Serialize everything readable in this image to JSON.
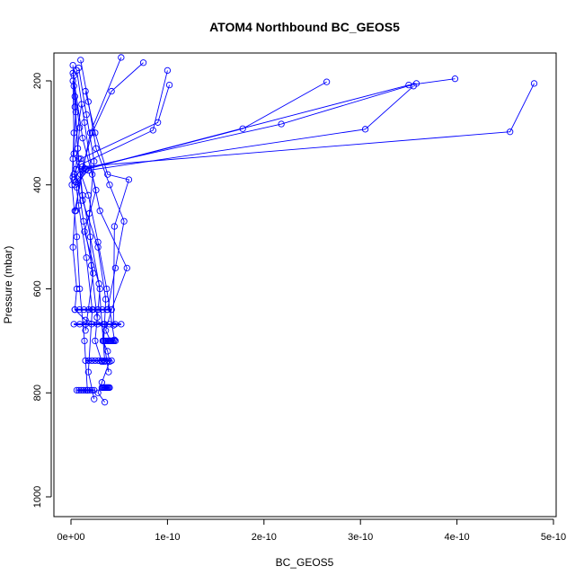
{
  "chart_data": {
    "type": "line",
    "title": "ATOM4 Northbound BC_GEOS5",
    "xlabel": "BC_GEOS5",
    "ylabel": "Pressure (mbar)",
    "xlim": [
      -1.5e-11,
      5e-10
    ],
    "ylim": [
      1030,
      150
    ],
    "y_reversed": true,
    "x_ticks": [
      {
        "value": 0,
        "label": "0e+00"
      },
      {
        "value": 1e-10,
        "label": "1e-10"
      },
      {
        "value": 2e-10,
        "label": "2e-10"
      },
      {
        "value": 3e-10,
        "label": "3e-10"
      },
      {
        "value": 4e-10,
        "label": "4e-10"
      },
      {
        "value": 5e-10,
        "label": "5e-10"
      }
    ],
    "y_ticks": [
      {
        "value": 200,
        "label": "200"
      },
      {
        "value": 400,
        "label": "400"
      },
      {
        "value": 600,
        "label": "600"
      },
      {
        "value": 800,
        "label": "800"
      },
      {
        "value": 1000,
        "label": "1000"
      }
    ],
    "grid": false,
    "marker": "open-circle",
    "color": "#0000ff",
    "series": [
      {
        "x": [
          4.8e-10,
          4.55e-10,
          1.2e-11,
          3e-12
        ],
        "y": [
          205,
          298,
          365,
          390
        ]
      },
      {
        "x": [
          3.98e-10,
          3.5e-10,
          1.5e-11,
          5e-12
        ],
        "y": [
          196,
          208,
          370,
          395
        ]
      },
      {
        "x": [
          3.55e-10,
          3.05e-10,
          1.8e-11,
          4e-12
        ],
        "y": [
          210,
          293,
          372,
          400
        ]
      },
      {
        "x": [
          3.58e-10,
          2.18e-10,
          1.4e-11,
          2e-12
        ],
        "y": [
          205,
          283,
          368,
          385
        ]
      },
      {
        "x": [
          2.65e-10,
          1.78e-10,
          1.6e-11,
          6e-12
        ],
        "y": [
          202,
          292,
          370,
          405
        ]
      },
      {
        "x": [
          1.02e-10,
          9e-11,
          1e-11,
          3e-12
        ],
        "y": [
          208,
          280,
          350,
          380
        ]
      },
      {
        "x": [
          1e-10,
          8.5e-11,
          1.1e-11
        ],
        "y": [
          180,
          295,
          360
        ]
      },
      {
        "x": [
          5.2e-11,
          2e-11,
          4e-12,
          2e-12,
          6e-12,
          4e-12,
          1.5e-11,
          3.5e-11,
          3.3e-11,
          3.8e-11,
          4e-11,
          3.2e-11,
          2.8e-11,
          3.5e-11
        ],
        "y": [
          155,
          300,
          450,
          520,
          600,
          640,
          660,
          668,
          700,
          720,
          740,
          780,
          800,
          818
        ]
      },
      {
        "x": [
          2e-12,
          4e-12,
          8e-12,
          1.2e-11,
          2e-11,
          3e-11,
          2.8e-11,
          2.5e-11,
          3.2e-11
        ],
        "y": [
          170,
          250,
          350,
          420,
          500,
          600,
          640,
          700,
          740
        ]
      },
      {
        "x": [
          6e-12,
          1.4e-11,
          2.2e-11,
          3e-11,
          5.8e-11,
          4.2e-11,
          3.6e-11,
          4.1e-11
        ],
        "y": [
          180,
          280,
          380,
          450,
          560,
          640,
          680,
          700
        ]
      },
      {
        "x": [
          3e-12,
          5e-12,
          2e-12,
          8e-12,
          1.6e-11,
          2.2e-11,
          1.8e-11,
          2.4e-11
        ],
        "y": [
          190,
          260,
          350,
          440,
          540,
          640,
          760,
          812
        ]
      },
      {
        "x": [
          1e-11,
          1.8e-11,
          2.6e-11,
          4e-11,
          5.5e-11,
          4.6e-11,
          3.8e-11
        ],
        "y": [
          160,
          240,
          330,
          400,
          470,
          560,
          640
        ]
      },
      {
        "x": [
          2e-12,
          3e-12,
          1e-12,
          6e-12,
          9e-12,
          1.4e-11,
          1.7e-11
        ],
        "y": [
          200,
          300,
          400,
          500,
          600,
          700,
          795
        ]
      },
      {
        "x": [
          1.5e-11,
          2.5e-11,
          3.8e-11,
          6e-11,
          4.5e-11,
          4.4e-11
        ],
        "y": [
          220,
          300,
          380,
          390,
          480,
          670
        ]
      },
      {
        "x": [
          4e-12,
          7e-12,
          1.2e-11,
          2.8e-11,
          3.6e-11,
          3.4e-11,
          3.9e-11
        ],
        "y": [
          230,
          330,
          430,
          520,
          620,
          700,
          760
        ]
      },
      {
        "x": [
          8e-12,
          1.6e-11,
          2.4e-11,
          1.9e-11,
          2.1e-11,
          2.7e-11
        ],
        "y": [
          175,
          265,
          355,
          455,
          555,
          655
        ]
      },
      {
        "x": [
          3e-12,
          9e-12,
          5e-12,
          1.3e-11,
          2.3e-11,
          1.5e-11
        ],
        "y": [
          210,
          290,
          370,
          470,
          570,
          680
        ]
      },
      {
        "x": [
          7.5e-11,
          4.2e-11,
          2.2e-11,
          1e-11,
          5e-12
        ],
        "y": [
          165,
          220,
          300,
          380,
          450
        ]
      },
      {
        "x": [
          1.1e-11,
          3e-12,
          1.8e-11,
          2.8e-11,
          3.7e-11,
          4.5e-11
        ],
        "y": [
          245,
          340,
          420,
          510,
          600,
          698
        ]
      },
      {
        "x": [
          2e-12,
          1.2e-11,
          2.6e-11,
          1.4e-11,
          2.9e-11,
          3.5e-11
        ],
        "y": [
          185,
          310,
          410,
          490,
          590,
          740
        ]
      }
    ],
    "horizontal_clusters": [
      {
        "y": 640,
        "x_from": 4e-12,
        "x_to": 4.2e-11
      },
      {
        "y": 668,
        "x_from": 3e-12,
        "x_to": 5.2e-11
      },
      {
        "y": 700,
        "x_from": 3.4e-11,
        "x_to": 4.6e-11
      },
      {
        "y": 738,
        "x_from": 1.5e-11,
        "x_to": 4.2e-11
      },
      {
        "y": 790,
        "x_from": 3.2e-11,
        "x_to": 4e-11
      },
      {
        "y": 795,
        "x_from": 6e-12,
        "x_to": 2.4e-11
      }
    ]
  }
}
